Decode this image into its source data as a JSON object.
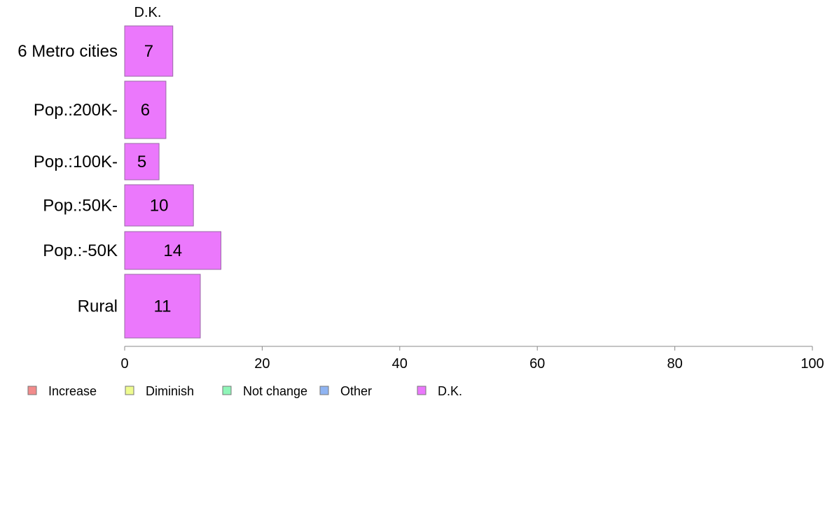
{
  "chart_data": {
    "type": "bar",
    "orientation": "horizontal",
    "stacked": true,
    "categories": [
      "6 Metro cities",
      "Pop.:200K-",
      "Pop.:100K-",
      "Pop.:50K-",
      "Pop.:-50K",
      "Rural"
    ],
    "series": [
      {
        "name": "Increase",
        "color": "#f28b8b",
        "values": [
          0,
          0,
          0,
          0,
          0,
          0
        ]
      },
      {
        "name": "Diminish",
        "color": "#eefb8f",
        "values": [
          0,
          0,
          0,
          0,
          0,
          0
        ]
      },
      {
        "name": "Not change",
        "color": "#8ff5b8",
        "values": [
          0,
          0,
          0,
          0,
          0,
          0
        ]
      },
      {
        "name": "Other",
        "color": "#8fb4f2",
        "values": [
          0,
          0,
          0,
          0,
          0,
          0
        ]
      },
      {
        "name": "D.K.",
        "color": "#eb78fc",
        "values": [
          7,
          6,
          5,
          10,
          14,
          11
        ]
      }
    ],
    "data_labels": [
      "7",
      "6",
      "5",
      "10",
      "14",
      "11"
    ],
    "top_series_label": "D.K.",
    "xlim": [
      0,
      100
    ],
    "xticks": [
      0,
      20,
      40,
      60,
      80,
      100
    ],
    "xtick_labels": [
      "0",
      "20",
      "40",
      "60",
      "80",
      "100"
    ],
    "grid": false,
    "legend_position": "bottom-left"
  }
}
